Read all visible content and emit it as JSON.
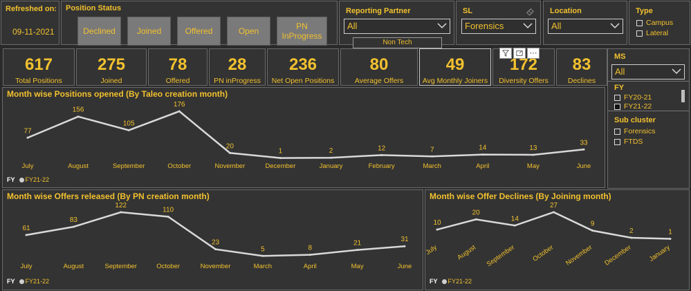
{
  "refreshed": {
    "label": "Refreshed on:",
    "date": "09-11-2021"
  },
  "position_status": {
    "title": "Position Status",
    "buttons": [
      "Declined",
      "Joined",
      "Offered",
      "Open",
      "PN InProgress"
    ]
  },
  "reporting_partner": {
    "title": "Reporting Partner",
    "value": "All",
    "sub_button": "Non Tech"
  },
  "sl": {
    "title": "SL",
    "value": "Forensics"
  },
  "location": {
    "title": "Location",
    "value": "All"
  },
  "type": {
    "title": "Type",
    "options": [
      "Campus",
      "Lateral"
    ]
  },
  "ms": {
    "title": "MS",
    "value": "All"
  },
  "fy_filter": {
    "title": "FY",
    "options": [
      "FY20-21",
      "FY21-22"
    ]
  },
  "sub_cluster": {
    "title": "Sub cluster",
    "options": [
      "Forensics",
      "FTDS"
    ]
  },
  "kpis": [
    {
      "value": "617",
      "label": "Total Positions"
    },
    {
      "value": "275",
      "label": "Joined"
    },
    {
      "value": "78",
      "label": "Offered"
    },
    {
      "value": "28",
      "label": "PN inProgress"
    },
    {
      "value": "236",
      "label": "Net Open Positions"
    },
    {
      "value": "80",
      "label": "Average Offers"
    },
    {
      "value": "49",
      "label": "Avg Monthly Joiners"
    },
    {
      "value": "172",
      "label": "Diversity Offers"
    },
    {
      "value": "83",
      "label": "Declines"
    }
  ],
  "colors": {
    "accent": "#f2c12e",
    "line": "#d9d9d9",
    "bg": "#2a2a2a"
  },
  "chart_data": [
    {
      "type": "line",
      "title": "Month wise Positions opened (By Taleo creation month)",
      "categories": [
        "July",
        "August",
        "September",
        "October",
        "November",
        "December",
        "January",
        "February",
        "March",
        "April",
        "May",
        "June"
      ],
      "series": [
        {
          "name": "FY21-22",
          "values": [
            77,
            156,
            105,
            176,
            20,
            1,
            2,
            12,
            7,
            14,
            13,
            33
          ]
        }
      ],
      "legend": {
        "label": "FY",
        "items": [
          "FY21-22"
        ]
      }
    },
    {
      "type": "line",
      "title": "Month wise Offers released (By PN creation month)",
      "categories": [
        "July",
        "August",
        "September",
        "October",
        "November",
        "March",
        "April",
        "May",
        "June"
      ],
      "series": [
        {
          "name": "FY21-22",
          "values": [
            61,
            83,
            122,
            110,
            23,
            5,
            8,
            21,
            31
          ]
        }
      ],
      "legend": {
        "label": "FY",
        "items": [
          "FY21-22"
        ]
      }
    },
    {
      "type": "line",
      "title": "Month wise Offer Declines (By Joining month)",
      "categories": [
        "July",
        "August",
        "September",
        "October",
        "November",
        "December",
        "January"
      ],
      "series": [
        {
          "name": "FY21-22",
          "values": [
            10,
            20,
            14,
            27,
            9,
            2,
            1
          ]
        }
      ],
      "legend": {
        "label": "FY",
        "items": [
          "FY21-22"
        ]
      }
    }
  ]
}
